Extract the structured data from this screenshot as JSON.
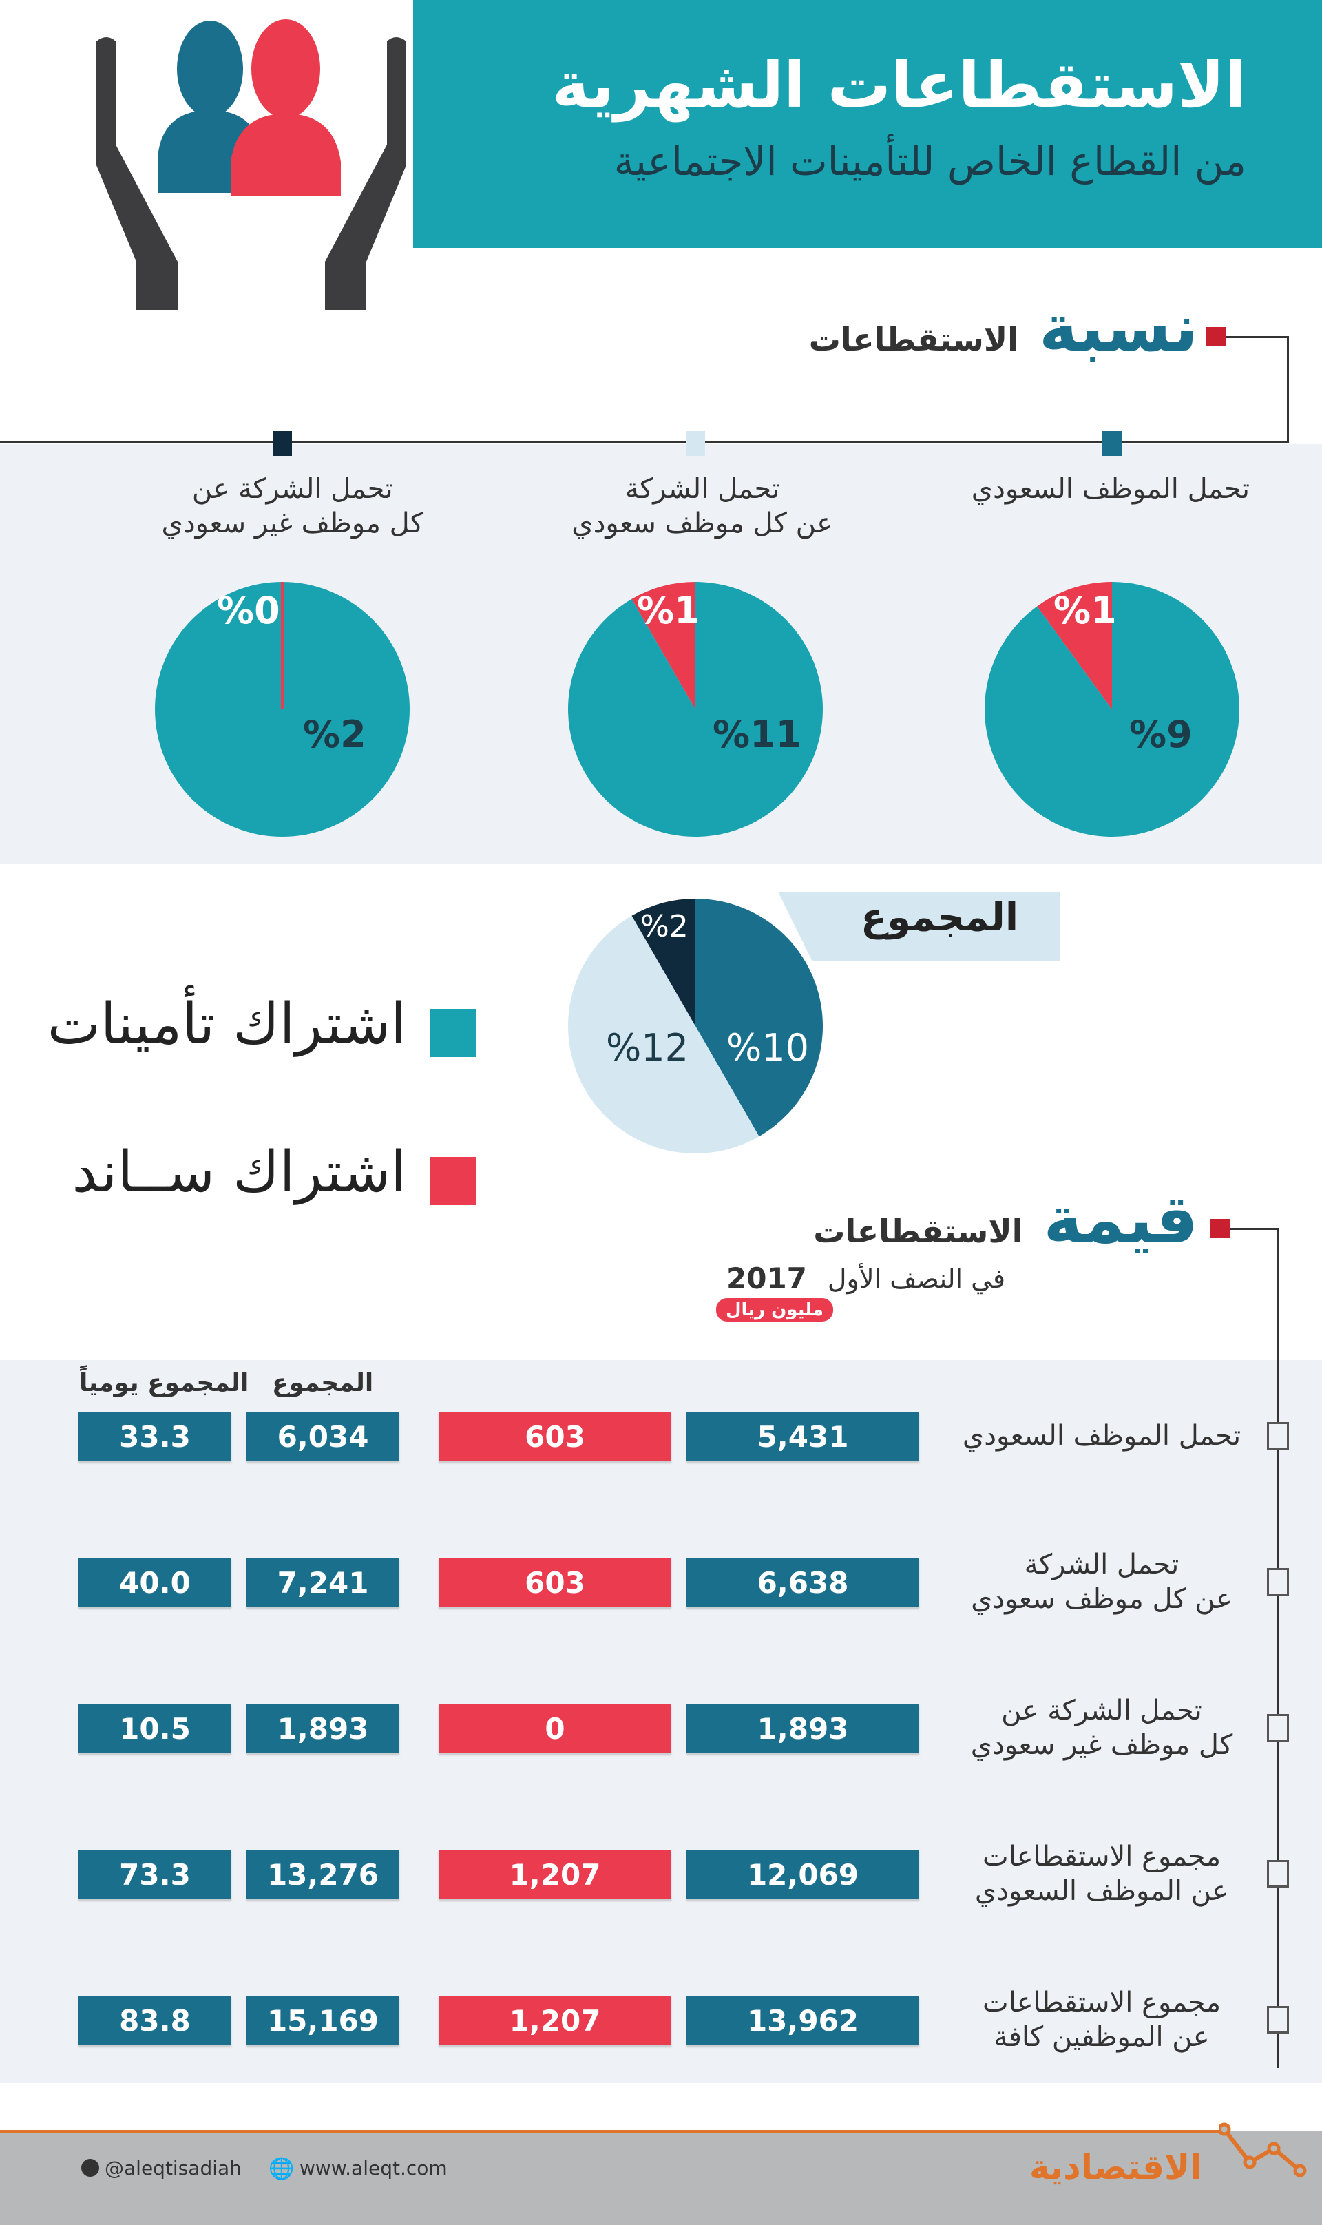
{
  "header": {
    "title": "الاستقطاعات الشهرية",
    "subtitle": "من القطاع الخاص للتأمينات الاجتماعية"
  },
  "ratio_section": {
    "big": "نسبة",
    "small": "الاستقطاعات",
    "pies": [
      {
        "label_line1": "تحمل الموظف السعودي",
        "label_line2": "",
        "insurance": 9,
        "saned": 1,
        "insurance_label": "%9",
        "saned_label": "%1"
      },
      {
        "label_line1": "تحمل الشركة",
        "label_line2": "عن كل موظف سعودي",
        "insurance": 11,
        "saned": 1,
        "insurance_label": "%11",
        "saned_label": "%1"
      },
      {
        "label_line1": "تحمل الشركة عن",
        "label_line2": "كل موظف غير سعودي",
        "insurance": 2,
        "saned": 0,
        "insurance_label": "%2",
        "saned_label": "%0"
      }
    ],
    "total": {
      "label": "المجموع",
      "slices": [
        {
          "value": 10,
          "label": "%10",
          "color": "#1a6f8c"
        },
        {
          "value": 12,
          "label": "%12",
          "color": "#d5e8f2"
        },
        {
          "value": 2,
          "label": "%2",
          "color": "#0f2a3d"
        }
      ]
    }
  },
  "legend": {
    "insurance": "اشتراك تأمينات",
    "saned": "اشتراك ســاند"
  },
  "value_section": {
    "big": "قيمة",
    "small": "الاستقطاعات",
    "period": "في النصف الأول",
    "year": "2017",
    "unit": "مليون ريال",
    "col_daily": "المجموع يومياً",
    "col_total": "المجموع",
    "rows": [
      {
        "label1": "تحمل الموظف السعودي",
        "label2": "",
        "insurance": "5,431",
        "saned": "603",
        "total": "6,034",
        "daily": "33.3"
      },
      {
        "label1": "تحمل الشركة",
        "label2": "عن كل موظف سعودي",
        "insurance": "6,638",
        "saned": "603",
        "total": "7,241",
        "daily": "40.0"
      },
      {
        "label1": "تحمل الشركة عن",
        "label2": "كل موظف غير سعودي",
        "insurance": "1,893",
        "saned": "0",
        "total": "1,893",
        "daily": "10.5"
      },
      {
        "label1": "مجموع الاستقطاعات",
        "label2": "عن الموظف السعودي",
        "insurance": "12,069",
        "saned": "1,207",
        "total": "13,276",
        "daily": "73.3"
      },
      {
        "label1": "مجموع الاستقطاعات",
        "label2": "عن الموظفين كافة",
        "insurance": "13,962",
        "saned": "1,207",
        "total": "15,169",
        "daily": "83.8"
      }
    ]
  },
  "footer": {
    "twitter": "@aleqtisadiah",
    "website": "www.aleqt.com",
    "logo": "الاقتصادية"
  },
  "colors": {
    "insurance": "#19a3b1",
    "saned": "#ea3b4f",
    "dark_teal": "#1a6f8c"
  }
}
